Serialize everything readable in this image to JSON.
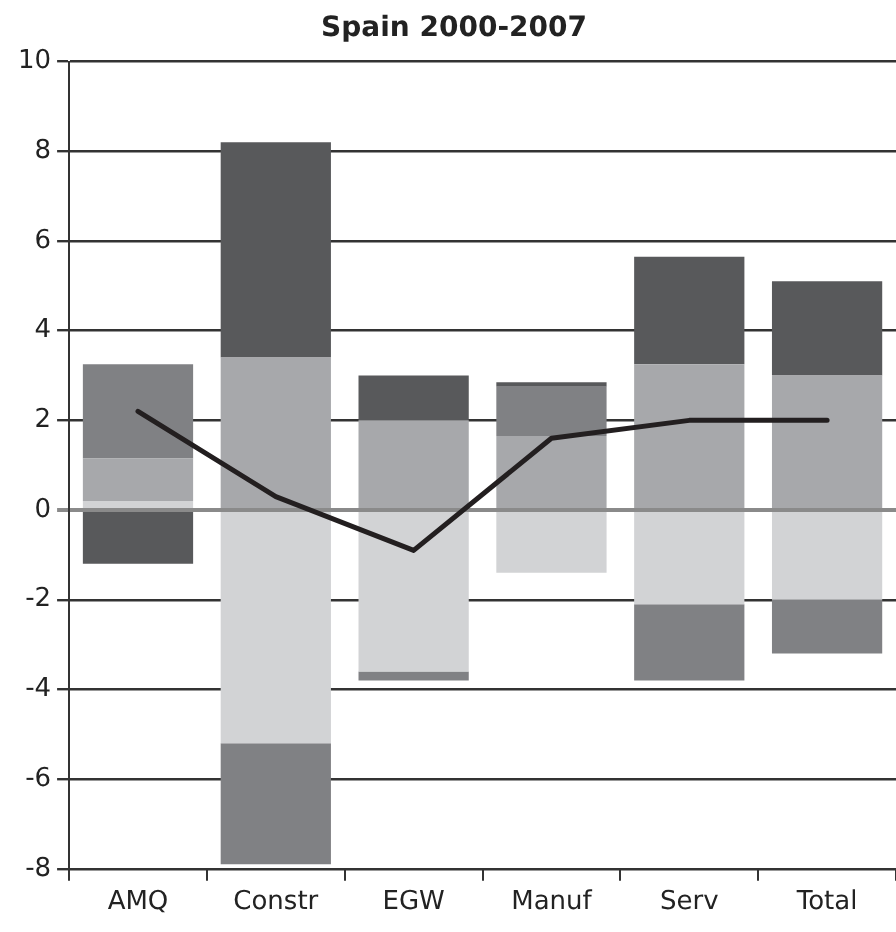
{
  "chart_data": {
    "type": "bar",
    "title": "Spain 2000-2007",
    "stacked": true,
    "categories": [
      "AMQ",
      "Constr",
      "EGW",
      "Manuf",
      "Serv",
      "Total"
    ],
    "series": [
      {
        "color": "#d2d3d5",
        "values": [
          0.2,
          -5.2,
          -3.6,
          -1.4,
          -2.1,
          -2.0
        ]
      },
      {
        "color": "#a7a8ab",
        "values": [
          0.95,
          3.4,
          2.0,
          1.65,
          3.25,
          3.0
        ]
      },
      {
        "color": "#808184",
        "values": [
          2.1,
          -2.7,
          -0.2,
          1.1,
          -1.7,
          -1.2
        ]
      },
      {
        "color": "#58595b",
        "values": [
          -1.2,
          4.8,
          1.0,
          0.1,
          2.4,
          2.1
        ]
      },
      {
        "type": "line",
        "color": "#231f20",
        "values": [
          2.2,
          0.3,
          -0.9,
          1.6,
          2.0,
          2.0
        ]
      }
    ],
    "ylim": [
      -8,
      10
    ],
    "yticks": [
      -8,
      -6,
      -4,
      -2,
      0,
      2,
      4,
      6,
      8,
      10
    ],
    "grid": "y",
    "legend": false,
    "marker": "none",
    "line_style": "solid"
  }
}
